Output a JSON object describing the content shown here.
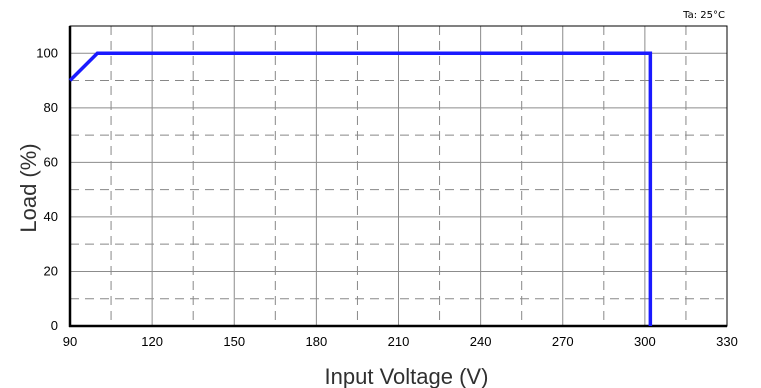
{
  "chart_data": {
    "type": "line",
    "xlabel": "Input Voltage (V)",
    "ylabel": "Load (%)",
    "annotation": "Ta: 25°C",
    "xlim": [
      90,
      330
    ],
    "ylim": [
      0,
      110
    ],
    "x_ticks": [
      "90",
      "120",
      "150",
      "180",
      "210",
      "240",
      "270",
      "300",
      "330"
    ],
    "y_ticks": [
      "0",
      "20",
      "40",
      "60",
      "80",
      "100"
    ],
    "grid": true,
    "series": [
      {
        "color": "#1a1aff",
        "points": [
          [
            90,
            90
          ],
          [
            100,
            100
          ],
          [
            302,
            100
          ],
          [
            302,
            0
          ]
        ]
      }
    ]
  }
}
